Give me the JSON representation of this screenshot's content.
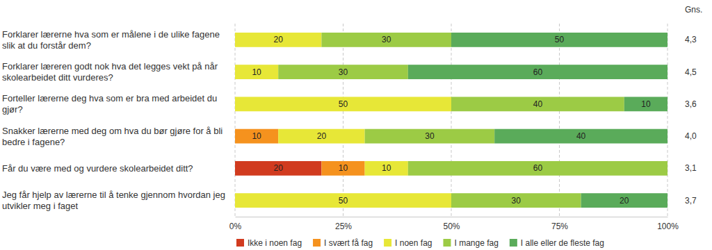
{
  "chart_data": {
    "type": "bar",
    "orientation": "horizontal",
    "stacked": true,
    "data_labels": true,
    "grid": true,
    "legend": "bottom",
    "categories": [
      "Forklarer lærerne hva som er målene i de ulike fagene slik at du forstår dem?",
      "Forklarer læreren godt nok hva det legges vekt på når skolearbeidet ditt vurderes?",
      "Forteller lærerne deg hva som er bra med arbeidet du gjør?",
      "Snakker lærerne med deg om hva du bør gjøre for å bli bedre i fagene?",
      "Får du være med og vurdere skolearbeidet ditt?",
      "Jeg får hjelp av lærerne til å tenke gjennom hvordan jeg utvikler meg i faget"
    ],
    "series": [
      {
        "name": "Ikke i noen fag",
        "color": "#d13b1f",
        "values": [
          null,
          null,
          null,
          null,
          20,
          null
        ]
      },
      {
        "name": "I svært få fag",
        "color": "#f5921e",
        "values": [
          null,
          null,
          null,
          10,
          10,
          null
        ]
      },
      {
        "name": "I noen fag",
        "color": "#e7e737",
        "values": [
          20,
          10,
          50,
          20,
          10,
          50
        ]
      },
      {
        "name": "I mange fag",
        "color": "#9ccb45",
        "values": [
          30,
          30,
          40,
          30,
          60,
          30
        ]
      },
      {
        "name": "I alle eller de fleste fag",
        "color": "#5aab5a",
        "values": [
          50,
          60,
          10,
          40,
          null,
          20
        ]
      }
    ],
    "xlim": [
      0,
      100
    ],
    "xticks": [
      {
        "value": 0,
        "label": "0%"
      },
      {
        "value": 25,
        "label": "25%"
      },
      {
        "value": 50,
        "label": "50%"
      },
      {
        "value": 75,
        "label": "75%"
      },
      {
        "value": 100,
        "label": "100%"
      }
    ],
    "averages": {
      "name": "Gns.",
      "values": [
        4.3,
        4.5,
        3.6,
        4.0,
        3.1,
        3.7
      ],
      "value_labels": [
        "4,3",
        "4,5",
        "3,6",
        "4,0",
        "3,1",
        "3,7"
      ]
    }
  }
}
